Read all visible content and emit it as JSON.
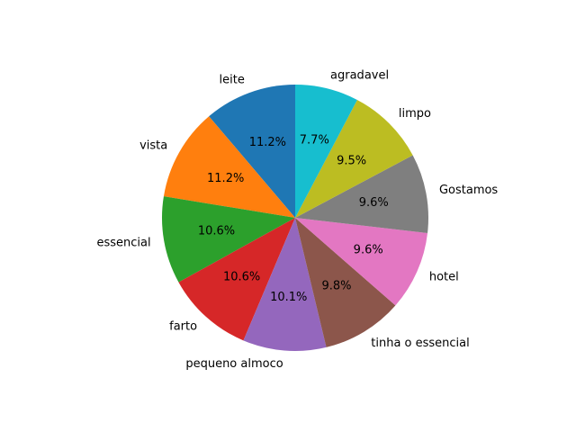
{
  "chart_data": {
    "type": "pie",
    "start_angle_deg": 90,
    "direction": "counterclockwise",
    "categories": [
      "leite",
      "vista",
      "essencial",
      "farto",
      "pequeno almoco",
      "tinha o essencial",
      "hotel",
      "Gostamos",
      "limpo",
      "agradavel"
    ],
    "values": [
      11.2,
      11.2,
      10.6,
      10.6,
      10.1,
      9.8,
      9.6,
      9.6,
      9.5,
      7.7
    ],
    "percent_labels": [
      "11.2%",
      "11.2%",
      "10.6%",
      "10.6%",
      "10.1%",
      "9.8%",
      "9.6%",
      "9.6%",
      "9.5%",
      "7.7%"
    ],
    "colors": [
      "#1f77b4",
      "#ff7f0e",
      "#2ca02c",
      "#d62728",
      "#9467bd",
      "#8c564b",
      "#e377c2",
      "#7f7f7f",
      "#bcbd22",
      "#17becf"
    ]
  }
}
